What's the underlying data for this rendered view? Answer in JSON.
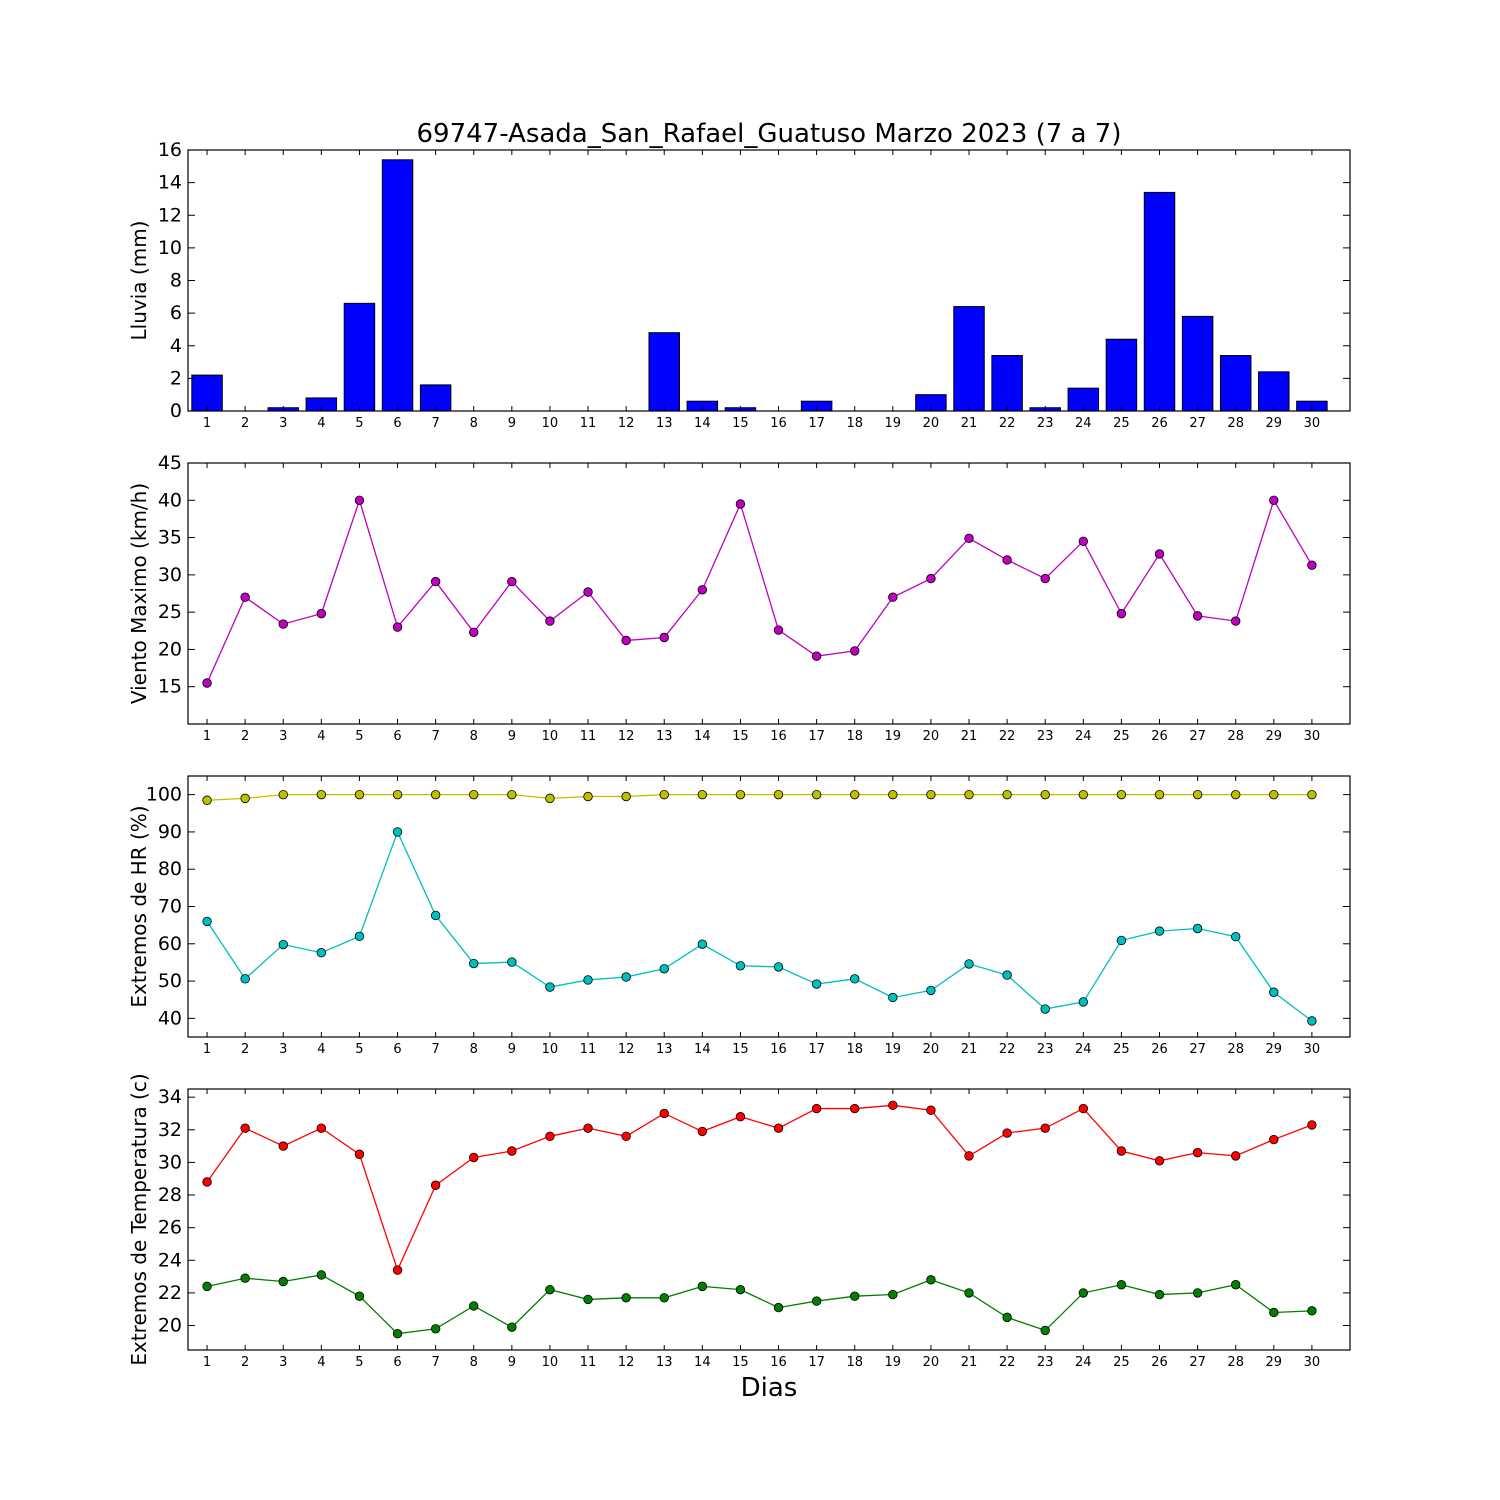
{
  "title": "69747-Asada_San_Rafael_Guatuso Marzo 2023  (7 a 7)",
  "xlabel": "Dias",
  "chart_data": [
    {
      "type": "bar",
      "ylabel": "Lluvia (mm)",
      "ylim": [
        0,
        16
      ],
      "yticks": [
        0,
        2,
        4,
        6,
        8,
        10,
        12,
        14,
        16
      ],
      "categories": [
        "1",
        "2",
        "3",
        "4",
        "5",
        "6",
        "7",
        "8",
        "9",
        "10",
        "11",
        "12",
        "13",
        "14",
        "15",
        "16",
        "17",
        "18",
        "19",
        "20",
        "21",
        "22",
        "23",
        "24",
        "25",
        "26",
        "27",
        "28",
        "29",
        "30"
      ],
      "series": [
        {
          "color": "#0000ff",
          "values": [
            2.2,
            0,
            0.2,
            0.8,
            6.6,
            15.4,
            1.6,
            0,
            0,
            0,
            0,
            0,
            4.8,
            0.6,
            0.2,
            0,
            0.6,
            0,
            0,
            1.0,
            6.4,
            3.4,
            0.2,
            1.4,
            4.4,
            13.4,
            5.8,
            3.4,
            2.4,
            0.6
          ]
        }
      ]
    },
    {
      "type": "line",
      "ylabel": "Viento Maximo (km/h)",
      "ylim": [
        10,
        45
      ],
      "yticks": [
        15,
        20,
        25,
        30,
        35,
        40,
        45
      ],
      "categories": [
        "1",
        "2",
        "3",
        "4",
        "5",
        "6",
        "7",
        "8",
        "9",
        "10",
        "11",
        "12",
        "13",
        "14",
        "15",
        "16",
        "17",
        "18",
        "19",
        "20",
        "21",
        "22",
        "23",
        "24",
        "25",
        "26",
        "27",
        "28",
        "29",
        "30"
      ],
      "series": [
        {
          "color": "#bf00bf",
          "values": [
            15.5,
            27.0,
            23.4,
            24.8,
            40.0,
            23.0,
            29.1,
            22.3,
            29.1,
            23.8,
            27.7,
            21.2,
            21.6,
            28.0,
            39.5,
            22.6,
            19.1,
            19.8,
            27.0,
            29.5,
            34.9,
            32.0,
            29.5,
            34.5,
            24.8,
            32.8,
            24.5,
            23.8,
            40.0,
            31.3
          ]
        }
      ]
    },
    {
      "type": "line",
      "ylabel": "Extremos de HR (%)",
      "ylim": [
        35,
        105
      ],
      "yticks": [
        40,
        50,
        60,
        70,
        80,
        90,
        100
      ],
      "categories": [
        "1",
        "2",
        "3",
        "4",
        "5",
        "6",
        "7",
        "8",
        "9",
        "10",
        "11",
        "12",
        "13",
        "14",
        "15",
        "16",
        "17",
        "18",
        "19",
        "20",
        "21",
        "22",
        "23",
        "24",
        "25",
        "26",
        "27",
        "28",
        "29",
        "30"
      ],
      "series": [
        {
          "color": "#bfbf00",
          "values": [
            98.5,
            99.0,
            100,
            100,
            100,
            100,
            100,
            100,
            100,
            99.0,
            99.5,
            99.5,
            100,
            100,
            100,
            100,
            100,
            100,
            100,
            100,
            100,
            100,
            100,
            100,
            100,
            100,
            100,
            100,
            100,
            100
          ]
        },
        {
          "color": "#00bfbf",
          "values": [
            66.0,
            50.6,
            59.8,
            57.6,
            62.0,
            90.0,
            67.6,
            54.7,
            55.1,
            48.4,
            50.3,
            51.1,
            53.3,
            59.9,
            54.1,
            53.8,
            49.2,
            50.6,
            45.6,
            47.5,
            54.6,
            51.6,
            42.5,
            44.4,
            60.9,
            63.4,
            64.1,
            61.9,
            47.0,
            39.3
          ]
        }
      ]
    },
    {
      "type": "line",
      "ylabel": "Extremos de Temperatura (c)",
      "ylim": [
        18.5,
        34.5
      ],
      "yticks": [
        20,
        22,
        24,
        26,
        28,
        30,
        32,
        34
      ],
      "categories": [
        "1",
        "2",
        "3",
        "4",
        "5",
        "6",
        "7",
        "8",
        "9",
        "10",
        "11",
        "12",
        "13",
        "14",
        "15",
        "16",
        "17",
        "18",
        "19",
        "20",
        "21",
        "22",
        "23",
        "24",
        "25",
        "26",
        "27",
        "28",
        "29",
        "30"
      ],
      "series": [
        {
          "color": "#ff0000",
          "values": [
            28.8,
            32.1,
            31.0,
            32.1,
            30.5,
            23.4,
            28.6,
            30.3,
            30.7,
            31.6,
            32.1,
            31.6,
            33.0,
            31.9,
            32.8,
            32.1,
            33.3,
            33.3,
            33.5,
            33.2,
            30.4,
            31.8,
            32.1,
            33.3,
            30.7,
            30.1,
            30.6,
            30.4,
            31.4,
            32.3
          ]
        },
        {
          "color": "#007f00",
          "values": [
            22.4,
            22.9,
            22.7,
            23.1,
            21.8,
            19.5,
            19.8,
            21.2,
            19.9,
            22.2,
            21.6,
            21.7,
            21.7,
            22.4,
            22.2,
            21.1,
            21.5,
            21.8,
            21.9,
            22.8,
            22.0,
            20.5,
            19.7,
            22.0,
            22.5,
            21.9,
            22.0,
            22.5,
            20.8,
            20.9
          ]
        }
      ]
    }
  ]
}
